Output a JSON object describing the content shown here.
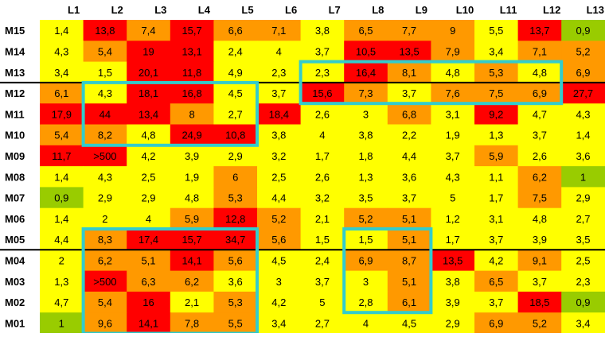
{
  "chart_data": {
    "type": "heatmap",
    "columns": [
      "L1",
      "L2",
      "L3",
      "L4",
      "L5",
      "L6",
      "L7",
      "L8",
      "L9",
      "L10",
      "L11",
      "L12",
      "L13"
    ],
    "rows": [
      "M15",
      "M14",
      "M13",
      "M12",
      "M11",
      "M10",
      "M09",
      "M08",
      "M07",
      "M06",
      "M05",
      "M04",
      "M03",
      "M02",
      "M01"
    ],
    "cells": [
      [
        "1,4",
        "13,8",
        "7,4",
        "15,7",
        "6,6",
        "7,1",
        "3,8",
        "6,5",
        "7,7",
        "9",
        "5,5",
        "13,7",
        "0,9"
      ],
      [
        "4,3",
        "5,4",
        "19",
        "13,1",
        "2,4",
        "4",
        "3,7",
        "10,5",
        "13,5",
        "7,9",
        "3,4",
        "7,1",
        "5,2"
      ],
      [
        "3,4",
        "1,5",
        "20,1",
        "11,8",
        "4,9",
        "2,3",
        "2,3",
        "16,4",
        "8,1",
        "4,8",
        "5,3",
        "4,8",
        "6,9"
      ],
      [
        "6,1",
        "4,3",
        "18,1",
        "16,8",
        "4,5",
        "3,7",
        "15,6",
        "7,3",
        "3,7",
        "7,6",
        "7,5",
        "6,9",
        "27,7"
      ],
      [
        "17,9",
        "44",
        "13,4",
        "8",
        "2,7",
        "18,4",
        "2,6",
        "3",
        "6,8",
        "3,1",
        "9,2",
        "4,7",
        "4,3"
      ],
      [
        "5,4",
        "8,2",
        "4,8",
        "24,9",
        "10,8",
        "3,8",
        "4",
        "3,8",
        "2,2",
        "1,9",
        "1,3",
        "3,7",
        "1,4"
      ],
      [
        "11,7",
        ">500",
        "4,2",
        "3,9",
        "2,9",
        "3,2",
        "1,7",
        "1,8",
        "4,4",
        "3,7",
        "5,9",
        "2,6",
        "3,6"
      ],
      [
        "1,4",
        "4,3",
        "2,5",
        "1,9",
        "6",
        "2,5",
        "2,6",
        "1,3",
        "3,6",
        "4,3",
        "1,1",
        "6,2",
        "1"
      ],
      [
        "0,9",
        "2,9",
        "2,9",
        "4,8",
        "5,3",
        "4,4",
        "3,2",
        "3,5",
        "3,7",
        "5",
        "1,7",
        "7,5",
        "2,9"
      ],
      [
        "1,4",
        "2",
        "4",
        "5,9",
        "12,8",
        "5,2",
        "2,1",
        "5,2",
        "5,1",
        "1,2",
        "3,1",
        "4,8",
        "2,7"
      ],
      [
        "4,4",
        "8,3",
        "17,4",
        "15,7",
        "34,7",
        "5,6",
        "1,5",
        "1,5",
        "5,1",
        "1,7",
        "3,7",
        "3,9",
        "3,5"
      ],
      [
        "2",
        "6,2",
        "5,1",
        "14,1",
        "5,6",
        "4,5",
        "2,4",
        "6,9",
        "8,7",
        "13,5",
        "4,2",
        "9,1",
        "2,5"
      ],
      [
        "1,3",
        ">500",
        "6,3",
        "6,2",
        "3,6",
        "3",
        "3,7",
        "3",
        "5,1",
        "3,8",
        "6,5",
        "3,7",
        "2,3"
      ],
      [
        "4,7",
        "5,4",
        "16",
        "2,1",
        "5,3",
        "4,2",
        "5",
        "2,8",
        "6,1",
        "3,9",
        "3,7",
        "18,5",
        "0,9"
      ],
      [
        "1",
        "9,6",
        "14,1",
        "7,8",
        "5,5",
        "3,4",
        "2,7",
        "4",
        "4,5",
        "2,9",
        "6,9",
        "5,2",
        "3,4"
      ]
    ],
    "color_classes": [
      [
        "Y",
        "R",
        "O",
        "R",
        "O",
        "O",
        "Y",
        "O",
        "O",
        "O",
        "Y",
        "R",
        "G"
      ],
      [
        "Y",
        "O",
        "R",
        "R",
        "Y",
        "Y",
        "Y",
        "R",
        "R",
        "O",
        "Y",
        "O",
        "O"
      ],
      [
        "Y",
        "Y",
        "R",
        "R",
        "Y",
        "Y",
        "Y",
        "R",
        "O",
        "Y",
        "O",
        "Y",
        "O"
      ],
      [
        "O",
        "Y",
        "R",
        "R",
        "Y",
        "Y",
        "R",
        "O",
        "Y",
        "O",
        "O",
        "O",
        "R"
      ],
      [
        "R",
        "R",
        "R",
        "O",
        "Y",
        "R",
        "Y",
        "Y",
        "O",
        "Y",
        "R",
        "Y",
        "Y"
      ],
      [
        "O",
        "O",
        "Y",
        "R",
        "R",
        "Y",
        "Y",
        "Y",
        "Y",
        "Y",
        "Y",
        "Y",
        "Y"
      ],
      [
        "R",
        "R",
        "Y",
        "Y",
        "Y",
        "Y",
        "Y",
        "Y",
        "Y",
        "Y",
        "O",
        "Y",
        "Y"
      ],
      [
        "Y",
        "Y",
        "Y",
        "Y",
        "O",
        "Y",
        "Y",
        "Y",
        "Y",
        "Y",
        "Y",
        "O",
        "G"
      ],
      [
        "G",
        "Y",
        "Y",
        "Y",
        "O",
        "Y",
        "Y",
        "Y",
        "Y",
        "Y",
        "Y",
        "O",
        "Y"
      ],
      [
        "Y",
        "Y",
        "Y",
        "O",
        "R",
        "O",
        "Y",
        "O",
        "O",
        "Y",
        "Y",
        "Y",
        "Y"
      ],
      [
        "Y",
        "O",
        "R",
        "R",
        "R",
        "O",
        "Y",
        "Y",
        "O",
        "Y",
        "Y",
        "Y",
        "Y"
      ],
      [
        "Y",
        "O",
        "O",
        "R",
        "O",
        "Y",
        "Y",
        "O",
        "O",
        "R",
        "Y",
        "O",
        "Y"
      ],
      [
        "Y",
        "R",
        "O",
        "O",
        "Y",
        "Y",
        "Y",
        "Y",
        "O",
        "Y",
        "O",
        "Y",
        "Y"
      ],
      [
        "Y",
        "O",
        "R",
        "Y",
        "O",
        "Y",
        "Y",
        "Y",
        "O",
        "Y",
        "Y",
        "R",
        "G"
      ],
      [
        "G",
        "O",
        "R",
        "O",
        "O",
        "Y",
        "Y",
        "Y",
        "Y",
        "Y",
        "O",
        "O",
        "Y"
      ]
    ],
    "palette": {
      "Y": "#ffff00",
      "O": "#ff9900",
      "R": "#ff0000",
      "G": "#99cc00",
      "highlight": "#33cccc",
      "separator": "#000000",
      "text": "#000000"
    },
    "highlight_boxes": [
      {
        "row_start": 3,
        "row_end": 5,
        "col_start": 1,
        "col_end": 4
      },
      {
        "row_start": 2,
        "row_end": 3,
        "col_start": 6,
        "col_end": 11
      },
      {
        "row_start": 10,
        "row_end": 14,
        "col_start": 1,
        "col_end": 4
      },
      {
        "row_start": 10,
        "row_end": 13,
        "col_start": 7,
        "col_end": 8
      }
    ],
    "separators_after_rows": [
      2,
      10
    ]
  }
}
